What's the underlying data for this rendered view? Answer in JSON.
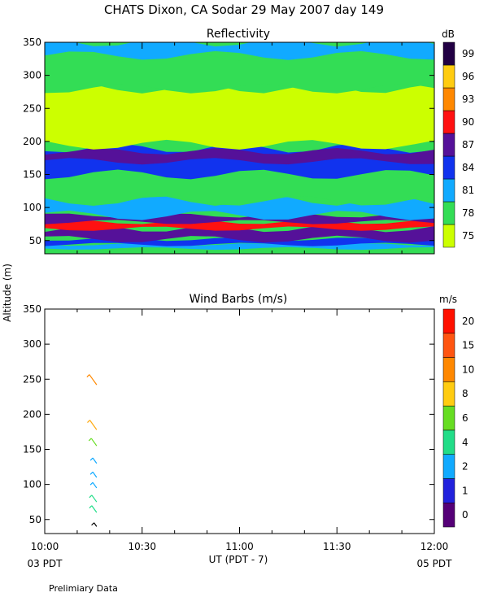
{
  "page": {
    "title": "CHATS Dixon, CA  Sodar  29 May 2007  day 149",
    "y_axis_label": "Altitude  (m)",
    "x_axis_label": "UT  (PDT - 7)",
    "left_local_time": "03 PDT",
    "right_local_time": "05 PDT",
    "footnote": "Prelimiary Data"
  },
  "chart_data": [
    {
      "type": "heatmap",
      "title": "Reflectivity",
      "colorbar_unit": "dB",
      "colorbar_ticks": [
        "75",
        "78",
        "81",
        "84",
        "87",
        "90",
        "93",
        "96",
        "99"
      ],
      "colorbar_colors": [
        "#ccff00",
        "#33dd55",
        "#11aaff",
        "#1133ee",
        "#551199",
        "#ff1111",
        "#ff8800",
        "#ffcc11",
        "#220044"
      ],
      "xlim": [
        "10:00",
        "12:00"
      ],
      "x_ticks": [
        "10:00",
        "10:30",
        "11:00",
        "11:30",
        "12:00"
      ],
      "ylim": [
        30,
        350
      ],
      "y_ticks": [
        "50",
        "100",
        "150",
        "200",
        "250",
        "300",
        "350"
      ],
      "layers": [
        {
          "altitude_m": [
            38,
            44
          ],
          "level_db": 81
        },
        {
          "altitude_m": [
            44,
            52
          ],
          "level_db": 84
        },
        {
          "altitude_m": [
            52,
            68
          ],
          "level_db": 87
        },
        {
          "altitude_m": [
            68,
            78
          ],
          "level_db": 90
        },
        {
          "altitude_m": [
            78,
            88
          ],
          "level_db": 87
        },
        {
          "altitude_m": [
            88,
            110
          ],
          "level_db": 81
        },
        {
          "altitude_m": [
            110,
            150
          ],
          "level_db": 78
        },
        {
          "altitude_m": [
            150,
            190
          ],
          "level_db": 84
        },
        {
          "altitude_m": [
            170,
            185
          ],
          "level_db": 87
        },
        {
          "altitude_m": [
            195,
            280
          ],
          "level_db": 75
        },
        {
          "altitude_m": [
            280,
            330
          ],
          "level_db": 78
        },
        {
          "altitude_m": [
            330,
            350
          ],
          "level_db": 81
        }
      ]
    },
    {
      "type": "scatter",
      "title": "Wind Barbs (m/s)",
      "colorbar_unit": "m/s",
      "colorbar_ticks": [
        "0",
        "1",
        "2",
        "4",
        "6",
        "8",
        "10",
        "15",
        "20"
      ],
      "colorbar_colors": [
        "#550077",
        "#2222dd",
        "#11aaff",
        "#22dd88",
        "#66dd22",
        "#ffcc11",
        "#ff8800",
        "#ff5511",
        "#ff1100"
      ],
      "xlim": [
        "10:00",
        "12:00"
      ],
      "x_ticks": [
        "10:00",
        "10:30",
        "11:00",
        "11:30",
        "12:00"
      ],
      "ylim": [
        30,
        350
      ],
      "y_ticks": [
        "50",
        "100",
        "150",
        "200",
        "250",
        "300",
        "350"
      ],
      "barbs": [
        {
          "time": "10:16",
          "altitude_m": 40,
          "speed_ms": 0.5,
          "color": "#000000"
        },
        {
          "time": "10:16",
          "altitude_m": 60,
          "speed_ms": 5,
          "color": "#22dd88"
        },
        {
          "time": "10:16",
          "altitude_m": 75,
          "speed_ms": 5,
          "color": "#22dd88"
        },
        {
          "time": "10:16",
          "altitude_m": 95,
          "speed_ms": 3,
          "color": "#11aaff"
        },
        {
          "time": "10:16",
          "altitude_m": 110,
          "speed_ms": 3,
          "color": "#11aaff"
        },
        {
          "time": "10:16",
          "altitude_m": 130,
          "speed_ms": 3,
          "color": "#11aaff"
        },
        {
          "time": "10:16",
          "altitude_m": 155,
          "speed_ms": 6,
          "color": "#66dd22"
        },
        {
          "time": "10:16",
          "altitude_m": 178,
          "speed_ms": 9,
          "color": "#ffaa11"
        },
        {
          "time": "10:16",
          "altitude_m": 242,
          "speed_ms": 10,
          "color": "#ff8800"
        }
      ]
    }
  ]
}
